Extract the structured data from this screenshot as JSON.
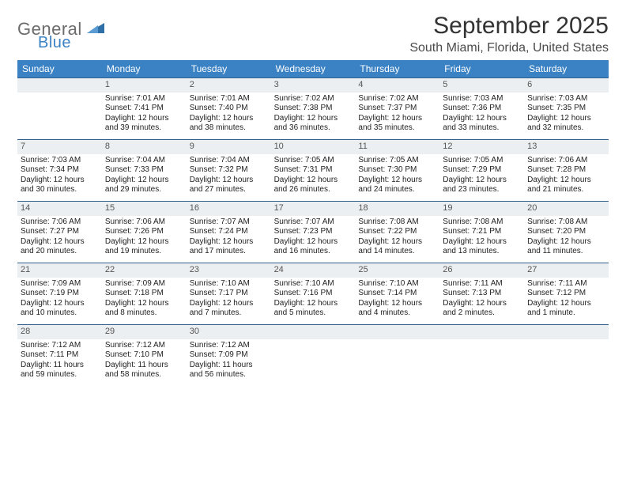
{
  "brand": {
    "word1": "General",
    "word2": "Blue",
    "mark_color": "#2f6fa8"
  },
  "title": "September 2025",
  "location": "South Miami, Florida, United States",
  "colors": {
    "header_bg": "#3b82c4",
    "header_fg": "#ffffff",
    "cell_border": "#2f5f8a",
    "numrow_bg": "#eceff1",
    "numrow_fg": "#555555",
    "body_text": "#222222",
    "title_fg": "#333333",
    "location_fg": "#4a4a4a"
  },
  "day_headers": [
    "Sunday",
    "Monday",
    "Tuesday",
    "Wednesday",
    "Thursday",
    "Friday",
    "Saturday"
  ],
  "weeks": [
    [
      null,
      {
        "n": "1",
        "sr": "Sunrise: 7:01 AM",
        "ss": "Sunset: 7:41 PM",
        "d1": "Daylight: 12 hours",
        "d2": "and 39 minutes."
      },
      {
        "n": "2",
        "sr": "Sunrise: 7:01 AM",
        "ss": "Sunset: 7:40 PM",
        "d1": "Daylight: 12 hours",
        "d2": "and 38 minutes."
      },
      {
        "n": "3",
        "sr": "Sunrise: 7:02 AM",
        "ss": "Sunset: 7:38 PM",
        "d1": "Daylight: 12 hours",
        "d2": "and 36 minutes."
      },
      {
        "n": "4",
        "sr": "Sunrise: 7:02 AM",
        "ss": "Sunset: 7:37 PM",
        "d1": "Daylight: 12 hours",
        "d2": "and 35 minutes."
      },
      {
        "n": "5",
        "sr": "Sunrise: 7:03 AM",
        "ss": "Sunset: 7:36 PM",
        "d1": "Daylight: 12 hours",
        "d2": "and 33 minutes."
      },
      {
        "n": "6",
        "sr": "Sunrise: 7:03 AM",
        "ss": "Sunset: 7:35 PM",
        "d1": "Daylight: 12 hours",
        "d2": "and 32 minutes."
      }
    ],
    [
      {
        "n": "7",
        "sr": "Sunrise: 7:03 AM",
        "ss": "Sunset: 7:34 PM",
        "d1": "Daylight: 12 hours",
        "d2": "and 30 minutes."
      },
      {
        "n": "8",
        "sr": "Sunrise: 7:04 AM",
        "ss": "Sunset: 7:33 PM",
        "d1": "Daylight: 12 hours",
        "d2": "and 29 minutes."
      },
      {
        "n": "9",
        "sr": "Sunrise: 7:04 AM",
        "ss": "Sunset: 7:32 PM",
        "d1": "Daylight: 12 hours",
        "d2": "and 27 minutes."
      },
      {
        "n": "10",
        "sr": "Sunrise: 7:05 AM",
        "ss": "Sunset: 7:31 PM",
        "d1": "Daylight: 12 hours",
        "d2": "and 26 minutes."
      },
      {
        "n": "11",
        "sr": "Sunrise: 7:05 AM",
        "ss": "Sunset: 7:30 PM",
        "d1": "Daylight: 12 hours",
        "d2": "and 24 minutes."
      },
      {
        "n": "12",
        "sr": "Sunrise: 7:05 AM",
        "ss": "Sunset: 7:29 PM",
        "d1": "Daylight: 12 hours",
        "d2": "and 23 minutes."
      },
      {
        "n": "13",
        "sr": "Sunrise: 7:06 AM",
        "ss": "Sunset: 7:28 PM",
        "d1": "Daylight: 12 hours",
        "d2": "and 21 minutes."
      }
    ],
    [
      {
        "n": "14",
        "sr": "Sunrise: 7:06 AM",
        "ss": "Sunset: 7:27 PM",
        "d1": "Daylight: 12 hours",
        "d2": "and 20 minutes."
      },
      {
        "n": "15",
        "sr": "Sunrise: 7:06 AM",
        "ss": "Sunset: 7:26 PM",
        "d1": "Daylight: 12 hours",
        "d2": "and 19 minutes."
      },
      {
        "n": "16",
        "sr": "Sunrise: 7:07 AM",
        "ss": "Sunset: 7:24 PM",
        "d1": "Daylight: 12 hours",
        "d2": "and 17 minutes."
      },
      {
        "n": "17",
        "sr": "Sunrise: 7:07 AM",
        "ss": "Sunset: 7:23 PM",
        "d1": "Daylight: 12 hours",
        "d2": "and 16 minutes."
      },
      {
        "n": "18",
        "sr": "Sunrise: 7:08 AM",
        "ss": "Sunset: 7:22 PM",
        "d1": "Daylight: 12 hours",
        "d2": "and 14 minutes."
      },
      {
        "n": "19",
        "sr": "Sunrise: 7:08 AM",
        "ss": "Sunset: 7:21 PM",
        "d1": "Daylight: 12 hours",
        "d2": "and 13 minutes."
      },
      {
        "n": "20",
        "sr": "Sunrise: 7:08 AM",
        "ss": "Sunset: 7:20 PM",
        "d1": "Daylight: 12 hours",
        "d2": "and 11 minutes."
      }
    ],
    [
      {
        "n": "21",
        "sr": "Sunrise: 7:09 AM",
        "ss": "Sunset: 7:19 PM",
        "d1": "Daylight: 12 hours",
        "d2": "and 10 minutes."
      },
      {
        "n": "22",
        "sr": "Sunrise: 7:09 AM",
        "ss": "Sunset: 7:18 PM",
        "d1": "Daylight: 12 hours",
        "d2": "and 8 minutes."
      },
      {
        "n": "23",
        "sr": "Sunrise: 7:10 AM",
        "ss": "Sunset: 7:17 PM",
        "d1": "Daylight: 12 hours",
        "d2": "and 7 minutes."
      },
      {
        "n": "24",
        "sr": "Sunrise: 7:10 AM",
        "ss": "Sunset: 7:16 PM",
        "d1": "Daylight: 12 hours",
        "d2": "and 5 minutes."
      },
      {
        "n": "25",
        "sr": "Sunrise: 7:10 AM",
        "ss": "Sunset: 7:14 PM",
        "d1": "Daylight: 12 hours",
        "d2": "and 4 minutes."
      },
      {
        "n": "26",
        "sr": "Sunrise: 7:11 AM",
        "ss": "Sunset: 7:13 PM",
        "d1": "Daylight: 12 hours",
        "d2": "and 2 minutes."
      },
      {
        "n": "27",
        "sr": "Sunrise: 7:11 AM",
        "ss": "Sunset: 7:12 PM",
        "d1": "Daylight: 12 hours",
        "d2": "and 1 minute."
      }
    ],
    [
      {
        "n": "28",
        "sr": "Sunrise: 7:12 AM",
        "ss": "Sunset: 7:11 PM",
        "d1": "Daylight: 11 hours",
        "d2": "and 59 minutes."
      },
      {
        "n": "29",
        "sr": "Sunrise: 7:12 AM",
        "ss": "Sunset: 7:10 PM",
        "d1": "Daylight: 11 hours",
        "d2": "and 58 minutes."
      },
      {
        "n": "30",
        "sr": "Sunrise: 7:12 AM",
        "ss": "Sunset: 7:09 PM",
        "d1": "Daylight: 11 hours",
        "d2": "and 56 minutes."
      },
      null,
      null,
      null,
      null
    ]
  ]
}
